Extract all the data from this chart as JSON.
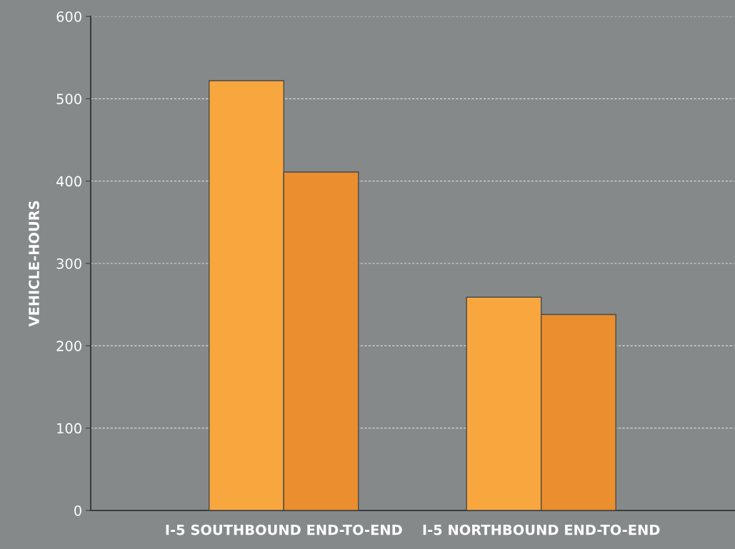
{
  "chart_data": {
    "type": "bar",
    "ylabel": "VEHICLE-HOURS",
    "categories": [
      "I-5 SOUTHBOUND END-TO-END",
      "I-5 NORTHBOUND END-TO-END"
    ],
    "series": [
      {
        "color": "#f8a73f",
        "values": [
          522,
          259
        ]
      },
      {
        "color": "#ea8e2f",
        "values": [
          411,
          238
        ]
      }
    ],
    "ylim": [
      0,
      600
    ],
    "yticks": [
      0,
      100,
      200,
      300,
      400,
      500,
      600
    ],
    "grid": "y"
  }
}
